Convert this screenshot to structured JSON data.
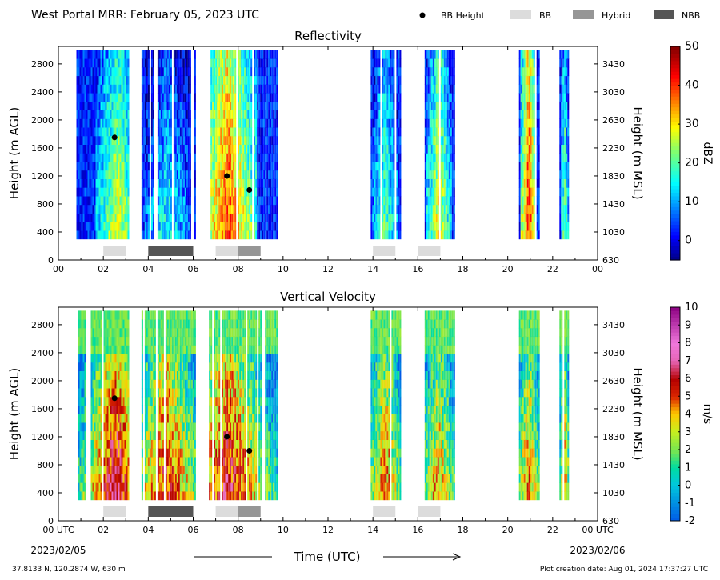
{
  "header": {
    "title": "West Portal MRR:  February 05, 2023 UTC",
    "legend": [
      {
        "label": "BB Height",
        "kind": "dot",
        "color": "#000000"
      },
      {
        "label": "BB",
        "kind": "box",
        "color": "#dcdcdc"
      },
      {
        "label": "Hybrid",
        "kind": "box",
        "color": "#969696"
      },
      {
        "label": "NBB",
        "kind": "box",
        "color": "#555555"
      }
    ]
  },
  "footer": {
    "location": "37.8133 N, 120.2874 W, 630 m",
    "created": "Plot creation date: Aug 01, 2024 17:37:27 UTC",
    "xlabel": "Time (UTC)",
    "start_label": "00 UTC",
    "start_date": "2023/02/05",
    "end_label": "00 UTC",
    "end_date": "2023/02/06"
  },
  "chart_data": [
    {
      "type": "heatmap",
      "title": "Reflectivity",
      "ylabel": "Height (m AGL)",
      "y2label": "Height (m MSL)",
      "xlim": [
        0,
        24
      ],
      "ylim": [
        0,
        3050
      ],
      "xticks": [
        "00",
        "02",
        "04",
        "06",
        "08",
        "10",
        "12",
        "14",
        "16",
        "18",
        "20",
        "22",
        "00"
      ],
      "yticks": [
        0,
        400,
        800,
        1200,
        1600,
        2000,
        2400,
        2800
      ],
      "y2ticks": [
        630,
        1030,
        1430,
        1830,
        2230,
        2630,
        3030,
        3430
      ],
      "colorbar": {
        "label": "dBZ",
        "min": -5,
        "max": 50,
        "ticks": [
          0,
          10,
          20,
          30,
          40,
          50
        ],
        "scheme": "jet"
      },
      "data_bottom": 300,
      "data_top": 3000,
      "bb_points": [
        {
          "x": 2.5,
          "y": 1750
        },
        {
          "x": 7.5,
          "y": 1200
        },
        {
          "x": 8.5,
          "y": 1000
        }
      ],
      "bb_bars": [
        {
          "start": 2.0,
          "end": 3.0,
          "class": "BB"
        },
        {
          "start": 4.0,
          "end": 6.0,
          "class": "NBB"
        },
        {
          "start": 7.0,
          "end": 8.0,
          "class": "BB"
        },
        {
          "start": 8.0,
          "end": 9.0,
          "class": "Hybrid"
        },
        {
          "start": 14.0,
          "end": 15.0,
          "class": "BB"
        },
        {
          "start": 16.0,
          "end": 17.0,
          "class": "BB"
        }
      ],
      "precip_periods": [
        {
          "start": 0.8,
          "end": 3.1,
          "core": 2.6,
          "peak": 28
        },
        {
          "start": 3.7,
          "end": 6.1,
          "core": 4.8,
          "peak": 16
        },
        {
          "start": 6.7,
          "end": 9.7,
          "core": 7.5,
          "peak": 40
        },
        {
          "start": 13.9,
          "end": 15.2,
          "core": 14.5,
          "peak": 22
        },
        {
          "start": 16.3,
          "end": 17.6,
          "core": 16.9,
          "peak": 30
        },
        {
          "start": 20.5,
          "end": 21.4,
          "core": 20.9,
          "peak": 42
        },
        {
          "start": 22.3,
          "end": 22.7,
          "core": 22.5,
          "peak": 24
        }
      ]
    },
    {
      "type": "heatmap",
      "title": "Vertical Velocity",
      "ylabel": "Height (m AGL)",
      "y2label": "Height (m MSL)",
      "xlim": [
        0,
        24
      ],
      "ylim": [
        0,
        3050
      ],
      "xticks": [
        "00 UTC",
        "02",
        "04",
        "06",
        "08",
        "10",
        "12",
        "14",
        "16",
        "18",
        "20",
        "22",
        "00 UTC"
      ],
      "yticks": [
        0,
        400,
        800,
        1200,
        1600,
        2000,
        2400,
        2800
      ],
      "y2ticks": [
        630,
        1030,
        1430,
        1830,
        2230,
        2630,
        3030,
        3430
      ],
      "colorbar": {
        "label": "m/s",
        "min": -2,
        "max": 10,
        "ticks": [
          -2,
          -1,
          0,
          1,
          2,
          3,
          4,
          5,
          6,
          7,
          8,
          9,
          10
        ],
        "scheme": "velocity"
      },
      "data_bottom": 300,
      "data_top": 3000,
      "bb_points": [
        {
          "x": 2.5,
          "y": 1750
        },
        {
          "x": 7.5,
          "y": 1200
        },
        {
          "x": 8.5,
          "y": 1000
        }
      ],
      "bb_bars": [
        {
          "start": 2.0,
          "end": 3.0,
          "class": "BB"
        },
        {
          "start": 4.0,
          "end": 6.0,
          "class": "NBB"
        },
        {
          "start": 7.0,
          "end": 8.0,
          "class": "BB"
        },
        {
          "start": 8.0,
          "end": 9.0,
          "class": "Hybrid"
        },
        {
          "start": 14.0,
          "end": 15.0,
          "class": "BB"
        },
        {
          "start": 16.0,
          "end": 17.0,
          "class": "BB"
        }
      ],
      "precip_periods": [
        {
          "start": 0.8,
          "end": 3.1,
          "core": 2.5,
          "peak": 7
        },
        {
          "start": 3.7,
          "end": 6.1,
          "core": 4.8,
          "peak": 6
        },
        {
          "start": 6.7,
          "end": 9.7,
          "core": 7.5,
          "peak": 6.5
        },
        {
          "start": 13.9,
          "end": 15.2,
          "core": 14.5,
          "peak": 5
        },
        {
          "start": 16.3,
          "end": 17.6,
          "core": 16.9,
          "peak": 4.5
        },
        {
          "start": 20.5,
          "end": 21.4,
          "core": 20.9,
          "peak": 5
        },
        {
          "start": 22.3,
          "end": 22.7,
          "core": 22.5,
          "peak": 4.5
        }
      ]
    }
  ]
}
